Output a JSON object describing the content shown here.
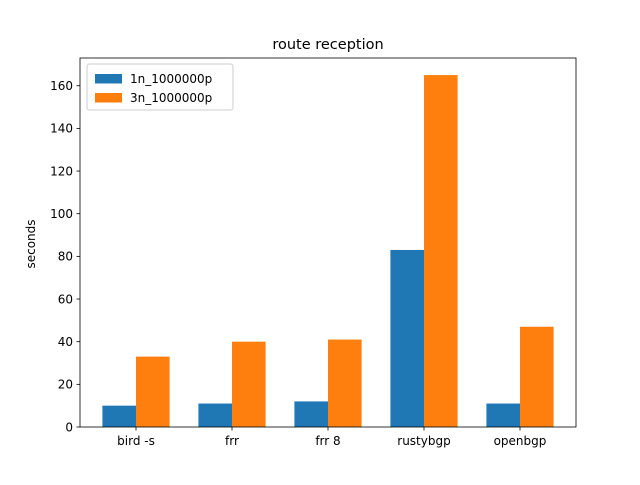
{
  "chart_data": {
    "type": "bar",
    "title": "route reception",
    "xlabel": "",
    "ylabel": "seconds",
    "categories": [
      "bird -s",
      "frr",
      "frr 8",
      "rustybgp",
      "openbgp"
    ],
    "series": [
      {
        "name": "1n_1000000p",
        "color": "#1f77b4",
        "values": [
          10,
          11,
          12,
          83,
          11
        ]
      },
      {
        "name": "3n_1000000p",
        "color": "#ff7f0e",
        "values": [
          33,
          40,
          41,
          165,
          47
        ]
      }
    ],
    "ylim": [
      0,
      173
    ],
    "yticks": [
      0,
      20,
      40,
      60,
      80,
      100,
      120,
      140,
      160
    ],
    "grid": false,
    "legend_position": "top-left"
  }
}
